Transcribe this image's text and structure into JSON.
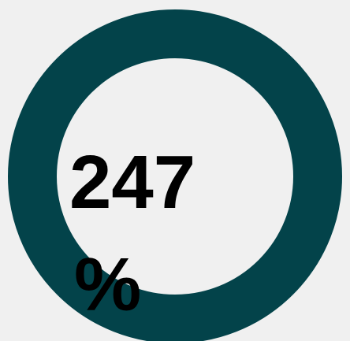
{
  "gauge": {
    "value": 247,
    "unit": "%"
  }
}
